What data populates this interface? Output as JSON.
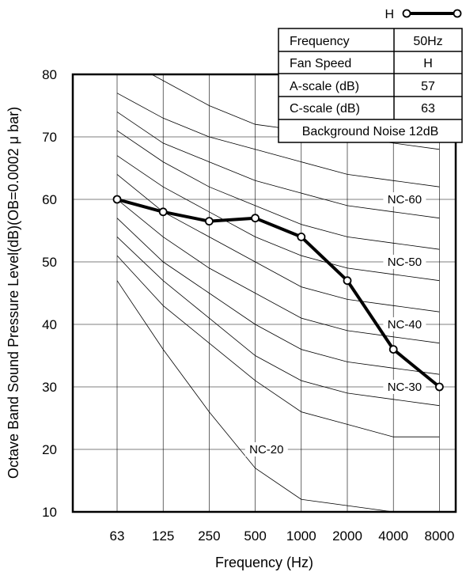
{
  "chart_data": {
    "type": "line",
    "xlabel": "Frequency (Hz)",
    "ylabel": "Octave Band Sound Pressure Level(dB)(OB=0.0002 μ bar)",
    "categories": [
      "63",
      "125",
      "250",
      "500",
      "1000",
      "2000",
      "4000",
      "8000"
    ],
    "ylim": [
      10,
      80
    ],
    "yticks": [
      "10",
      "20",
      "30",
      "40",
      "50",
      "60",
      "70",
      "80"
    ],
    "grid": true,
    "series": [
      {
        "values": [
          60,
          58,
          56.5,
          57,
          54,
          47,
          36,
          30
        ],
        "color": "#000000"
      }
    ],
    "nc_curves": [
      {
        "values": [
          83,
          79,
          75,
          72,
          71,
          70,
          69,
          68
        ]
      },
      {
        "values": [
          77,
          73,
          70,
          68,
          66,
          64,
          63,
          62
        ]
      },
      {
        "values": [
          74,
          69,
          66,
          63,
          61,
          59,
          58,
          57
        ]
      },
      {
        "values": [
          71,
          66,
          62,
          59,
          56,
          54,
          53,
          52
        ]
      },
      {
        "values": [
          67,
          62,
          58,
          54,
          51,
          49,
          48,
          47
        ]
      },
      {
        "values": [
          64,
          58,
          54,
          50,
          46,
          44,
          43,
          42
        ]
      },
      {
        "values": [
          60,
          54,
          49,
          45,
          41,
          39,
          38,
          37
        ]
      },
      {
        "values": [
          57,
          50,
          45,
          40,
          36,
          34,
          33,
          32
        ]
      },
      {
        "values": [
          54,
          47,
          41,
          35,
          31,
          29,
          28,
          27
        ]
      },
      {
        "values": [
          51,
          43,
          37,
          31,
          26,
          24,
          22,
          22
        ]
      },
      {
        "values": [
          47,
          36,
          26,
          17,
          12,
          11,
          10,
          10
        ]
      }
    ],
    "nc_labels": [
      {
        "text": "NC-60",
        "x": "8000",
        "y": 60
      },
      {
        "text": "NC-50",
        "x": "8000",
        "y": 50
      },
      {
        "text": "NC-40",
        "x": "8000",
        "y": 40
      },
      {
        "text": "NC-30",
        "x": "8000",
        "y": 30
      },
      {
        "text": "NC-20",
        "x": "1000",
        "y": 20
      }
    ],
    "legend": {
      "label": "H",
      "placement": "top-right"
    }
  },
  "info_table": {
    "rows": [
      {
        "label": "Frequency",
        "value": "50Hz"
      },
      {
        "label": "Fan Speed",
        "value": "H"
      },
      {
        "label": "A-scale (dB)",
        "value": "57"
      },
      {
        "label": "C-scale (dB)",
        "value": "63"
      }
    ],
    "footer": "Background Noise 12dB"
  }
}
